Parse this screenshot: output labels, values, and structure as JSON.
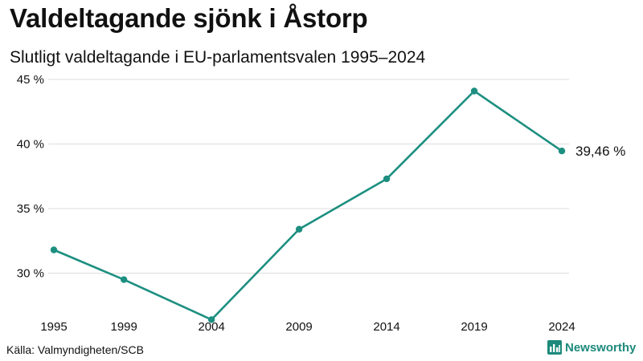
{
  "header": {
    "title": "Valdeltagande sjönk i Åstorp",
    "subtitle": "Slutligt valdeltagande i EU-parlamentsvalen 1995–2024"
  },
  "footer": {
    "source": "Källa: Valmyndigheten/SCB",
    "brand": "Newsworthy",
    "brand_icon": "bar-chart-logo-icon"
  },
  "colors": {
    "series": "#1d8f80",
    "grid": "#dddddd",
    "text": "#111111"
  },
  "chart_data": {
    "type": "line",
    "title": "Valdeltagande sjönk i Åstorp",
    "subtitle": "Slutligt valdeltagande i EU-parlamentsvalen 1995–2024",
    "xlabel": "",
    "ylabel": "",
    "x": [
      1995,
      1999,
      2004,
      2009,
      2014,
      2019,
      2024
    ],
    "x_tick_labels": [
      "1995",
      "1999",
      "2004",
      "2009",
      "2014",
      "2019",
      "2024"
    ],
    "ylim": [
      26.8,
      45
    ],
    "y_ticks": [
      30,
      35,
      40,
      45
    ],
    "y_tick_labels": [
      "30 %",
      "35 %",
      "40 %",
      "45 %"
    ],
    "grid": true,
    "series": [
      {
        "name": "Valdeltagande",
        "values": [
          31.8,
          29.5,
          26.4,
          33.4,
          37.3,
          44.1,
          39.46
        ]
      }
    ],
    "end_label": "39,46 %"
  }
}
